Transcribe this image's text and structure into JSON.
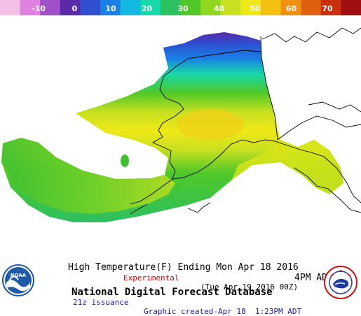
{
  "legend": {
    "ticks": [
      "-10",
      "0",
      "10",
      "20",
      "30",
      "40",
      "50",
      "60",
      "70"
    ],
    "colors": [
      "#f5c0e8",
      "#e080e0",
      "#a050c8",
      "#5a2aa8",
      "#2d4fd0",
      "#1a80e6",
      "#12b8e0",
      "#16d8a8",
      "#2cc060",
      "#50c828",
      "#90d820",
      "#c8e020",
      "#f0e818",
      "#f5c010",
      "#f09010",
      "#e06010",
      "#c83010",
      "#a01010"
    ]
  },
  "map": {
    "region": "Alaska"
  },
  "caption": {
    "title": "High Temperature(F) Ending Mon Apr 18 2016",
    "time": "4PM ADT",
    "experimental": "Experimental",
    "valid": "(Tue Apr 19 2016 00Z)",
    "database": "National Digital Forecast Database",
    "issuance": "21z issuance",
    "created": "Graphic created-Apr 18  1:23PM ADT"
  },
  "logos": {
    "noaa_text": "NOAA",
    "nws_ring_text": "NATIONAL WEATHER SERVICE"
  }
}
